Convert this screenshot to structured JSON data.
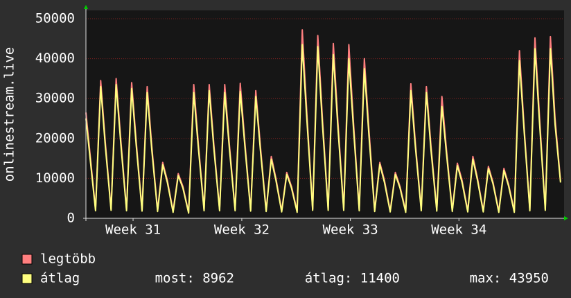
{
  "chart_data": {
    "type": "line",
    "y_label": "onlinestream.live",
    "x": [
      0,
      0.62,
      0.95,
      1.25,
      1.62,
      1.95,
      2.25,
      2.62,
      2.95,
      3.25,
      3.62,
      3.95,
      4.25,
      4.62,
      4.95,
      5.25,
      5.62,
      5.95,
      6.25,
      6.62,
      6.95,
      7.25,
      7.62,
      7.95,
      8.25,
      8.62,
      8.95,
      9.25,
      9.62,
      9.95,
      10.25,
      10.62,
      10.95,
      11.25,
      11.62,
      11.95,
      12.25,
      12.62,
      12.95,
      13.25,
      13.62,
      13.95,
      14.25,
      14.62,
      14.95,
      15.25,
      15.62,
      15.95,
      16.25,
      16.62,
      16.95,
      17.25,
      17.62,
      17.95,
      18.25,
      18.62,
      18.95,
      19.25,
      19.62,
      19.95,
      20.25,
      20.62,
      20.95,
      21.25,
      21.62,
      21.95,
      22.25,
      22.62,
      22.95,
      23.25,
      23.62,
      23.95,
      24.25,
      24.62,
      24.95,
      25.25,
      25.62,
      25.95,
      26.25,
      26.62,
      26.95,
      27.25,
      27.62,
      27.95,
      28.25,
      28.62,
      28.95,
      29.25,
      29.62,
      29.95,
      30.25,
      30.6
    ],
    "series": [
      {
        "name": "legtöbb",
        "color": "#ff7f7f",
        "values": [
          26500,
          2200,
          34500,
          19000,
          2300,
          35000,
          19500,
          2200,
          34000,
          19000,
          2100,
          33000,
          18000,
          2000,
          14000,
          9500,
          1800,
          11200,
          8000,
          1500,
          33500,
          18500,
          2200,
          33500,
          18500,
          2200,
          33500,
          18500,
          2200,
          33800,
          19000,
          2100,
          32000,
          18000,
          2000,
          15500,
          10000,
          1900,
          11500,
          8000,
          1800,
          47200,
          26000,
          2300,
          45800,
          25000,
          2300,
          43800,
          24000,
          2300,
          43500,
          24000,
          2200,
          40000,
          22000,
          2000,
          14000,
          9500,
          1900,
          11500,
          8000,
          1800,
          33700,
          18500,
          2200,
          33000,
          18000,
          2100,
          30500,
          17000,
          2000,
          13800,
          9500,
          1900,
          15500,
          10000,
          1900,
          13000,
          9000,
          1800,
          12500,
          8500,
          1800,
          42000,
          23000,
          2200,
          45200,
          25000,
          2300,
          45500,
          25000,
          9300
        ]
      },
      {
        "name": "átlag",
        "color": "#ffff80",
        "values": [
          25000,
          1900,
          33000,
          18000,
          2000,
          33500,
          18500,
          1900,
          32500,
          18000,
          1800,
          31500,
          17000,
          1700,
          13400,
          9000,
          1500,
          10700,
          7600,
          1300,
          31500,
          17500,
          1900,
          32000,
          17500,
          1900,
          31500,
          17500,
          1900,
          31800,
          18000,
          1800,
          30500,
          17000,
          1700,
          14800,
          9500,
          1600,
          11000,
          7600,
          1500,
          43500,
          24500,
          2000,
          43000,
          23500,
          2000,
          41000,
          22500,
          2000,
          40000,
          22500,
          1900,
          37500,
          20500,
          1700,
          13500,
          9000,
          1600,
          11000,
          7600,
          1500,
          32000,
          17500,
          1900,
          31500,
          17000,
          1800,
          28000,
          16000,
          1700,
          13200,
          9000,
          1600,
          14800,
          9500,
          1600,
          12500,
          8600,
          1500,
          12000,
          8100,
          1500,
          39500,
          22000,
          1900,
          42500,
          23500,
          2000,
          42500,
          23500,
          8962
        ]
      }
    ],
    "stats": [
      "most: 8962",
      "átlag: 11400",
      "max: 43950"
    ],
    "xlim": [
      0,
      30.65
    ],
    "xticks": [
      {
        "value": 3.04,
        "label": "Week 31"
      },
      {
        "value": 10.05,
        "label": "Week 32"
      },
      {
        "value": 17.05,
        "label": "Week 33"
      },
      {
        "value": 24.05,
        "label": "Week 34"
      }
    ],
    "ylim": [
      0,
      50000
    ],
    "yticks": [
      0,
      10000,
      20000,
      30000,
      40000,
      50000
    ],
    "grid": true
  }
}
